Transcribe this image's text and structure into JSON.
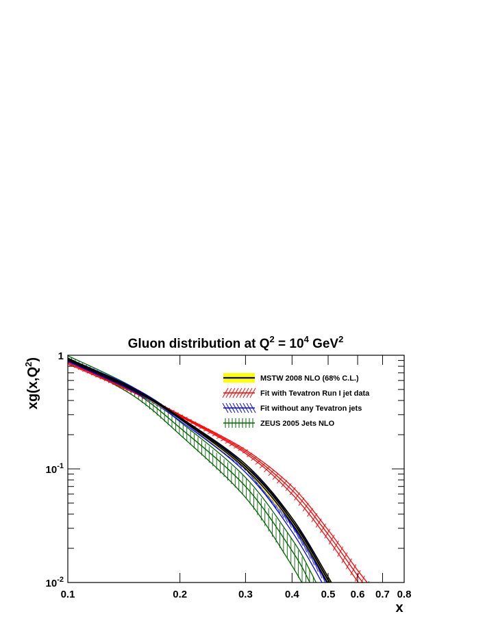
{
  "chart_data": {
    "type": "line",
    "title": "Gluon distribution at Q",
    "title_sup1": "2",
    "title_mid": " = 10",
    "title_sup2": "4",
    "title_unit": " GeV",
    "title_sup3": "2",
    "xlabel": "x",
    "ylabel_main": "xg(x,Q",
    "ylabel_sup": "2",
    "ylabel_end": ")",
    "x_scale": "log",
    "y_scale": "log",
    "xlim": [
      0.1,
      0.8
    ],
    "ylim": [
      0.01,
      1
    ],
    "x_ticks": [
      {
        "value": 0.1,
        "label": "0.1"
      },
      {
        "value": 0.2,
        "label": "0.2"
      },
      {
        "value": 0.3,
        "label": "0.3"
      },
      {
        "value": 0.4,
        "label": "0.4"
      },
      {
        "value": 0.5,
        "label": "0.5"
      },
      {
        "value": 0.6,
        "label": "0.6"
      },
      {
        "value": 0.7,
        "label": "0.7"
      },
      {
        "value": 0.8,
        "label": "0.8"
      }
    ],
    "y_ticks": [
      {
        "value": 1,
        "base": "1",
        "exp": ""
      },
      {
        "value": 0.1,
        "base": "10",
        "exp": "-1"
      },
      {
        "value": 0.01,
        "base": "10",
        "exp": "-2"
      }
    ],
    "grid": false,
    "legend_position": "top-right",
    "series": [
      {
        "name": "MSTW 2008 NLO (68% C.L.)",
        "color": "#000000",
        "band_color": "#ffff00",
        "style": "solid band",
        "x": [
          0.1,
          0.15,
          0.2,
          0.3,
          0.4,
          0.5,
          0.52
        ],
        "y": [
          0.92,
          0.5,
          0.28,
          0.105,
          0.035,
          0.0105,
          0.0083
        ],
        "y_low": [
          0.9,
          0.49,
          0.275,
          0.1,
          0.033,
          0.0098,
          0.0078
        ],
        "y_high": [
          0.94,
          0.51,
          0.285,
          0.11,
          0.037,
          0.0112,
          0.0088
        ]
      },
      {
        "name": "Fit with Tevatron Run I jet data",
        "color": "#ff0000",
        "style": "hatched band",
        "x": [
          0.1,
          0.15,
          0.2,
          0.3,
          0.4,
          0.5,
          0.6,
          0.65
        ],
        "y": [
          0.86,
          0.48,
          0.295,
          0.142,
          0.065,
          0.0265,
          0.0115,
          0.0082
        ],
        "y_low": [
          0.84,
          0.47,
          0.29,
          0.137,
          0.06,
          0.024,
          0.0102,
          0.0072
        ],
        "y_high": [
          0.88,
          0.49,
          0.3,
          0.147,
          0.07,
          0.029,
          0.0128,
          0.0092
        ]
      },
      {
        "name": "Fit without any Tevatron jets",
        "color": "#0000ff",
        "style": "hatched band",
        "x": [
          0.1,
          0.15,
          0.2,
          0.3,
          0.4,
          0.5,
          0.52
        ],
        "y": [
          0.91,
          0.5,
          0.275,
          0.1,
          0.032,
          0.0095,
          0.0075
        ],
        "y_low": [
          0.88,
          0.48,
          0.265,
          0.093,
          0.028,
          0.008,
          0.0064
        ],
        "y_high": [
          0.94,
          0.52,
          0.285,
          0.107,
          0.036,
          0.011,
          0.0087
        ]
      },
      {
        "name": "ZEUS 2005 Jets NLO",
        "color": "#006400",
        "style": "hatched band",
        "x": [
          0.1,
          0.15,
          0.2,
          0.3,
          0.4,
          0.45,
          0.5
        ],
        "y": [
          0.95,
          0.48,
          0.23,
          0.07,
          0.019,
          0.0095,
          0.0046
        ],
        "y_low": [
          0.91,
          0.44,
          0.2,
          0.056,
          0.014,
          0.0068,
          0.0032
        ],
        "y_high": [
          0.99,
          0.52,
          0.26,
          0.084,
          0.024,
          0.0122,
          0.006
        ]
      }
    ]
  }
}
